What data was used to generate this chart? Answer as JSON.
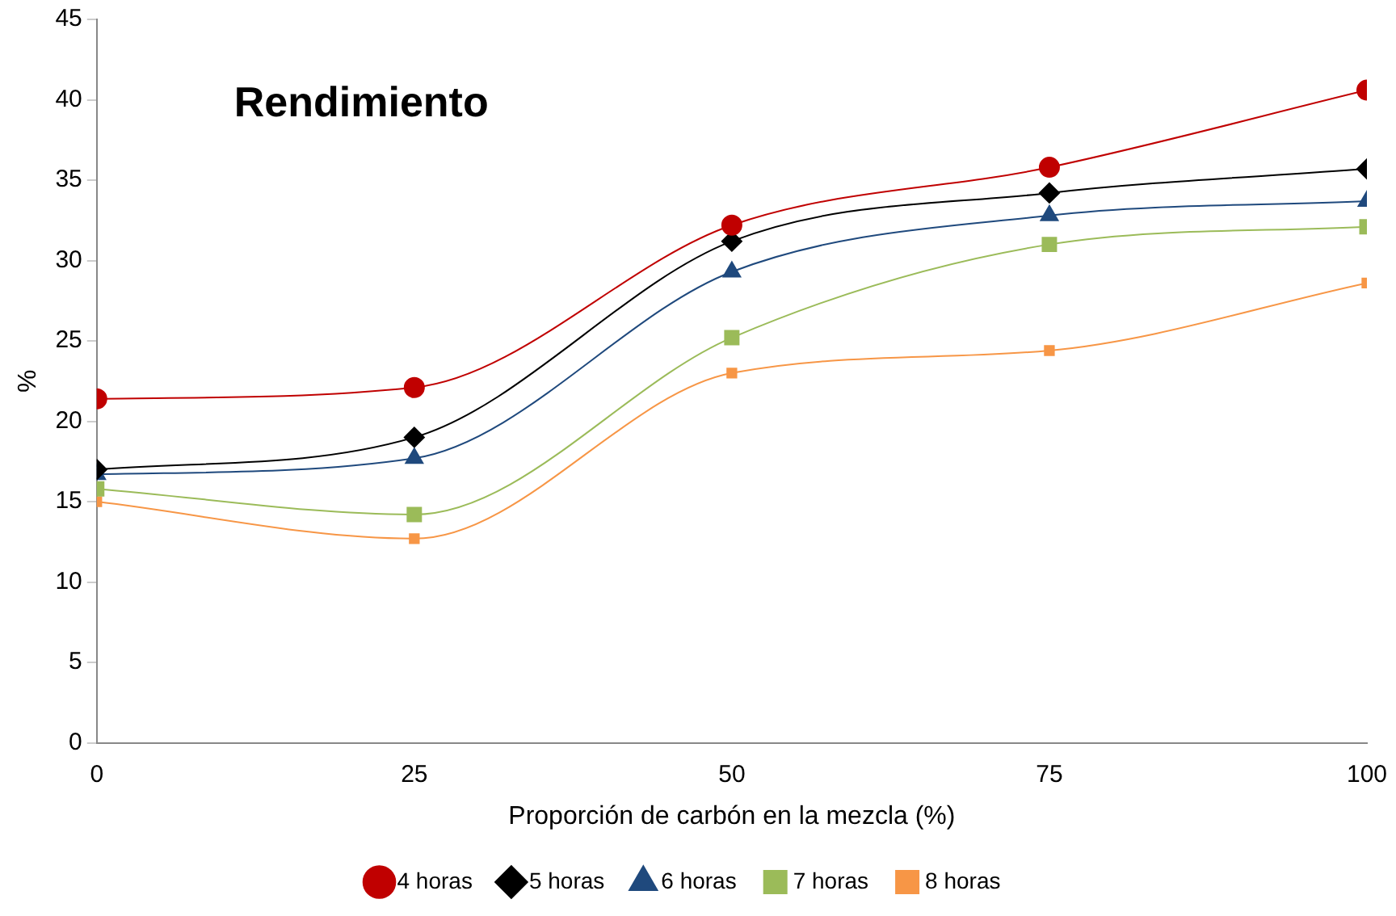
{
  "chart_data": {
    "type": "line",
    "title": "Rendimiento",
    "xlabel": "Proporción de carbón en la mezcla (%)",
    "ylabel": "%",
    "x": [
      0,
      25,
      50,
      75,
      100
    ],
    "xlim": [
      0,
      100
    ],
    "xticks": [
      0,
      25,
      50,
      75,
      100
    ],
    "ylim": [
      0,
      45
    ],
    "yticks": [
      0,
      5,
      10,
      15,
      20,
      25,
      30,
      35,
      40,
      45
    ],
    "grid": false,
    "legend": "bottom",
    "series": [
      {
        "name": "4 horas",
        "color": "#c00000",
        "marker": "circle",
        "values": [
          21.4,
          22.1,
          32.2,
          35.8,
          40.6
        ]
      },
      {
        "name": "5 horas",
        "color": "#000000",
        "marker": "diamond",
        "values": [
          17.0,
          19.0,
          31.2,
          34.2,
          35.7
        ]
      },
      {
        "name": "6 horas",
        "color": "#1f497d",
        "marker": "triangle",
        "values": [
          16.7,
          17.7,
          29.3,
          32.8,
          33.7
        ]
      },
      {
        "name": "7 horas",
        "color": "#9bbb59",
        "marker": "square",
        "values": [
          15.8,
          14.2,
          25.2,
          31.0,
          32.1
        ]
      },
      {
        "name": "8 horas",
        "color": "#f79646",
        "marker": "square",
        "values": [
          15.0,
          12.7,
          23.0,
          24.4,
          28.6
        ]
      }
    ]
  }
}
